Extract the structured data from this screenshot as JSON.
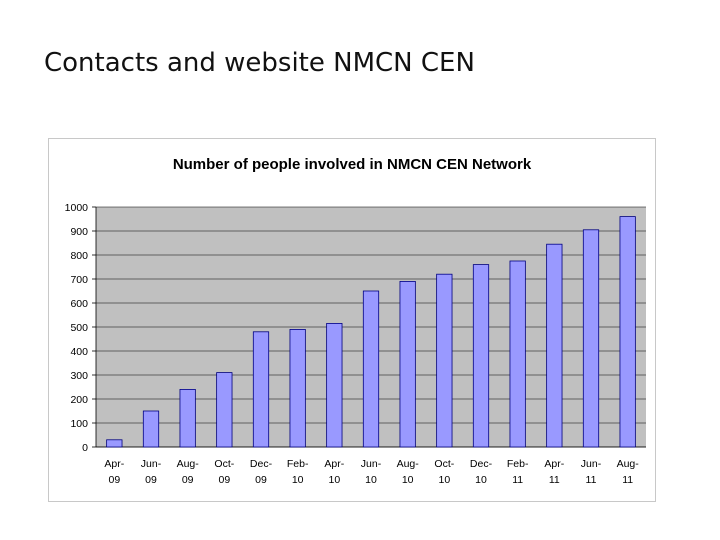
{
  "slide": {
    "title": "Contacts and website NMCN CEN"
  },
  "colors": {
    "plot_background": "#c0c0c0",
    "bar_fill": "#9999ff",
    "bar_stroke": "#000080",
    "gridline": "#000000"
  },
  "chart_data": {
    "type": "bar",
    "title": "Number of people involved in NMCN CEN Network",
    "xlabel": "",
    "ylabel": "",
    "ylim": [
      0,
      1000
    ],
    "yticks": [
      0,
      100,
      200,
      300,
      400,
      500,
      600,
      700,
      800,
      900,
      1000
    ],
    "grid": true,
    "legend": "none",
    "categories": [
      [
        "Apr-",
        "09"
      ],
      [
        "Jun-",
        "09"
      ],
      [
        "Aug-",
        "09"
      ],
      [
        "Oct-",
        "09"
      ],
      [
        "Dec-",
        "09"
      ],
      [
        "Feb-",
        "10"
      ],
      [
        "Apr-",
        "10"
      ],
      [
        "Jun-",
        "10"
      ],
      [
        "Aug-",
        "10"
      ],
      [
        "Oct-",
        "10"
      ],
      [
        "Dec-",
        "10"
      ],
      [
        "Feb-",
        "11"
      ],
      [
        "Apr-",
        "11"
      ],
      [
        "Jun-",
        "11"
      ],
      [
        "Aug-",
        "11"
      ]
    ],
    "values": [
      30,
      150,
      240,
      310,
      480,
      490,
      515,
      650,
      690,
      720,
      760,
      775,
      845,
      905,
      960
    ]
  }
}
